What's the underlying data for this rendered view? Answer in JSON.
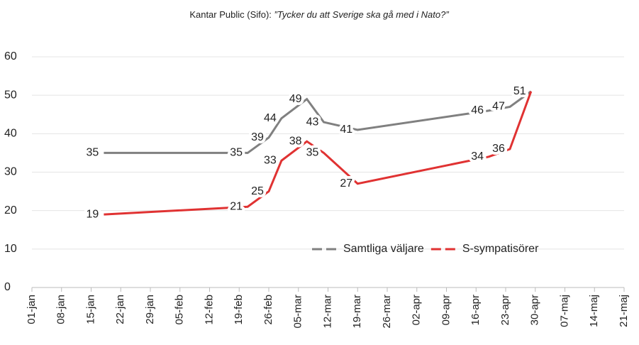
{
  "chart_data": {
    "type": "line",
    "title": "Kantar Public (Sifo): ",
    "subtitle": "”Tycker du att Sverige ska gå med i Nato?”",
    "x": [
      17,
      51,
      56,
      59,
      65,
      69,
      77,
      108,
      113,
      118
    ],
    "series": [
      {
        "name": "Samtliga väljare",
        "color": "#808080",
        "values": [
          35,
          35,
          39,
          44,
          49,
          43,
          41,
          46,
          47,
          51
        ]
      },
      {
        "name": "S-sympatisörer",
        "color": "#e03232",
        "values": [
          19,
          21,
          25,
          33,
          38,
          35,
          27,
          34,
          36,
          51
        ]
      }
    ],
    "xlim": [
      0,
      140
    ],
    "xticks": [
      {
        "value": 0,
        "label": "01-jan"
      },
      {
        "value": 7,
        "label": "08-jan"
      },
      {
        "value": 14,
        "label": "15-jan"
      },
      {
        "value": 21,
        "label": "22-jan"
      },
      {
        "value": 28,
        "label": "29-jan"
      },
      {
        "value": 35,
        "label": "05-feb"
      },
      {
        "value": 42,
        "label": "12-feb"
      },
      {
        "value": 49,
        "label": "19-feb"
      },
      {
        "value": 56,
        "label": "26-feb"
      },
      {
        "value": 63,
        "label": "05-mar"
      },
      {
        "value": 70,
        "label": "12-mar"
      },
      {
        "value": 77,
        "label": "19-mar"
      },
      {
        "value": 84,
        "label": "26-mar"
      },
      {
        "value": 91,
        "label": "02-apr"
      },
      {
        "value": 98,
        "label": "09-apr"
      },
      {
        "value": 105,
        "label": "16-apr"
      },
      {
        "value": 112,
        "label": "23-apr"
      },
      {
        "value": 119,
        "label": "30-apr"
      },
      {
        "value": 126,
        "label": "07-maj"
      },
      {
        "value": 133,
        "label": "14-maj"
      },
      {
        "value": 140,
        "label": "21-maj"
      }
    ],
    "ylim": [
      0,
      60
    ],
    "yticks": [
      0,
      10,
      20,
      30,
      40,
      50,
      60
    ],
    "grid": true,
    "legend": "bottom"
  }
}
